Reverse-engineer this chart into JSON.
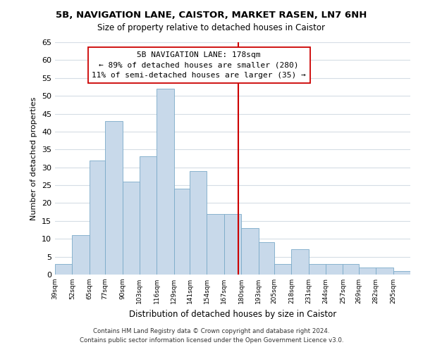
{
  "title": "5B, NAVIGATION LANE, CAISTOR, MARKET RASEN, LN7 6NH",
  "subtitle": "Size of property relative to detached houses in Caistor",
  "xlabel": "Distribution of detached houses by size in Caistor",
  "ylabel": "Number of detached properties",
  "bin_labels": [
    "39sqm",
    "52sqm",
    "65sqm",
    "77sqm",
    "90sqm",
    "103sqm",
    "116sqm",
    "129sqm",
    "141sqm",
    "154sqm",
    "167sqm",
    "180sqm",
    "193sqm",
    "205sqm",
    "218sqm",
    "231sqm",
    "244sqm",
    "257sqm",
    "269sqm",
    "282sqm",
    "295sqm"
  ],
  "bin_edges": [
    39,
    52,
    65,
    77,
    90,
    103,
    116,
    129,
    141,
    154,
    167,
    180,
    193,
    205,
    218,
    231,
    244,
    257,
    269,
    282,
    295,
    308
  ],
  "bar_heights": [
    3,
    11,
    32,
    43,
    26,
    33,
    52,
    24,
    29,
    17,
    17,
    13,
    9,
    3,
    7,
    3,
    3,
    3,
    2,
    2,
    1
  ],
  "bar_color": "#c8d9ea",
  "bar_edgecolor": "#7aaac8",
  "grid_color": "#d5dde5",
  "vline_x": 178,
  "vline_color": "#cc0000",
  "annotation_text": "5B NAVIGATION LANE: 178sqm\n← 89% of detached houses are smaller (280)\n11% of semi-detached houses are larger (35) →",
  "annotation_box_edgecolor": "#cc0000",
  "annotation_box_facecolor": "#ffffff",
  "ylim": [
    0,
    65
  ],
  "yticks": [
    0,
    5,
    10,
    15,
    20,
    25,
    30,
    35,
    40,
    45,
    50,
    55,
    60,
    65
  ],
  "footer1": "Contains HM Land Registry data © Crown copyright and database right 2024.",
  "footer2": "Contains public sector information licensed under the Open Government Licence v3.0."
}
